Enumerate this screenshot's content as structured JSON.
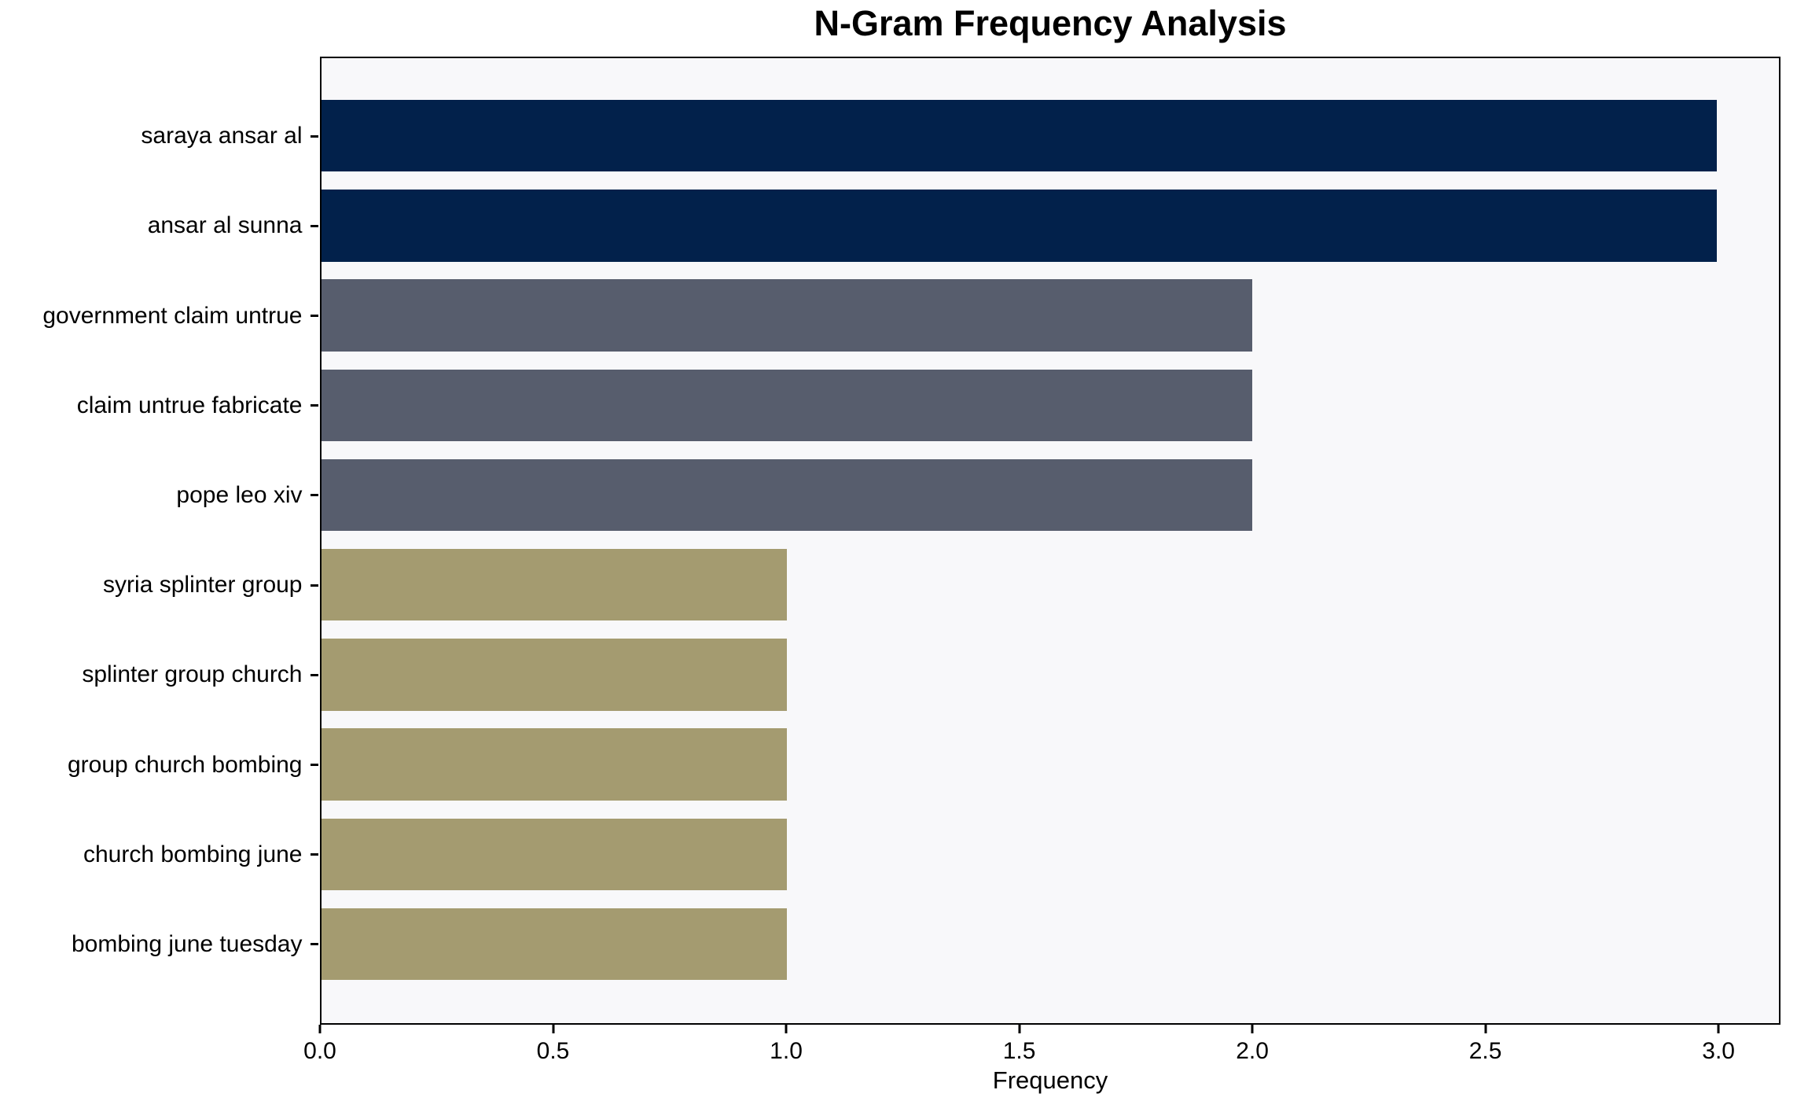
{
  "chart_data": {
    "type": "bar",
    "orientation": "horizontal",
    "title": "N-Gram Frequency Analysis",
    "xlabel": "Frequency",
    "ylabel": "",
    "categories": [
      "saraya ansar al",
      "ansar al sunna",
      "government claim untrue",
      "claim untrue fabricate",
      "pope leo xiv",
      "syria splinter group",
      "splinter group church",
      "group church bombing",
      "church bombing june",
      "bombing june tuesday"
    ],
    "values": [
      3,
      3,
      2,
      2,
      2,
      1,
      1,
      1,
      1,
      1
    ],
    "bar_colors": [
      "#02214b",
      "#02214b",
      "#575d6d",
      "#575d6d",
      "#575d6d",
      "#a49b70",
      "#a49b70",
      "#a49b70",
      "#a49b70",
      "#a49b70"
    ],
    "x_tick_labels": [
      "0.0",
      "0.5",
      "1.0",
      "1.5",
      "2.0",
      "2.5",
      "3.0"
    ],
    "x_tick_values": [
      0,
      0.5,
      1,
      1.5,
      2,
      2.5,
      3
    ],
    "xlim": [
      0,
      3.133
    ],
    "grid": false,
    "legend": false,
    "plot_background": "#f8f8fa",
    "frame_color": "#000000"
  }
}
